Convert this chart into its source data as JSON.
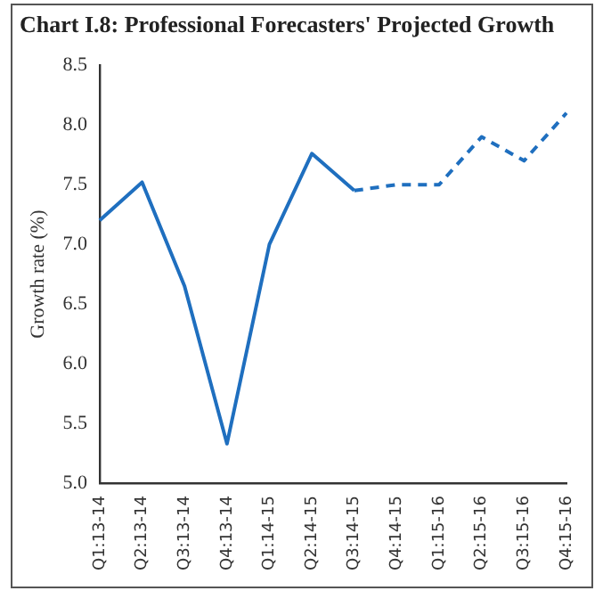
{
  "chart_data": {
    "type": "line",
    "title": "Chart I.8: Professional Forecasters' Projected Growth",
    "ylabel": "Growth rate (%)",
    "categories": [
      "Q1:13-14",
      "Q2:13-14",
      "Q3:13-14",
      "Q4:13-14",
      "Q1:14-15",
      "Q2:14-15",
      "Q3:14-15",
      "Q4:14-15",
      "Q1:15-16",
      "Q2:15-16",
      "Q3:15-16",
      "Q4:15-16"
    ],
    "series": [
      {
        "color": "#1f6fbf",
        "line_style": "solid",
        "values": [
          7.2,
          7.52,
          6.65,
          5.33,
          7.0,
          7.76,
          7.45,
          null,
          null,
          null,
          null,
          null
        ]
      },
      {
        "color": "#1f6fbf",
        "line_style": "dashed",
        "values": [
          null,
          null,
          null,
          null,
          null,
          null,
          7.45,
          7.5,
          7.5,
          7.9,
          7.7,
          8.1
        ]
      }
    ],
    "ylim": [
      5.0,
      8.5
    ],
    "yticks": [
      {
        "value": 5.0,
        "label": "5.0"
      },
      {
        "value": 5.5,
        "label": "5.5"
      },
      {
        "value": 6.0,
        "label": "6.0"
      },
      {
        "value": 6.5,
        "label": "6.5"
      },
      {
        "value": 7.0,
        "label": "7.0"
      },
      {
        "value": 7.5,
        "label": "7.5"
      },
      {
        "value": 8.0,
        "label": "8.0"
      },
      {
        "value": 8.5,
        "label": "8.5"
      }
    ],
    "grid": false,
    "legend": false,
    "marker": "none"
  }
}
